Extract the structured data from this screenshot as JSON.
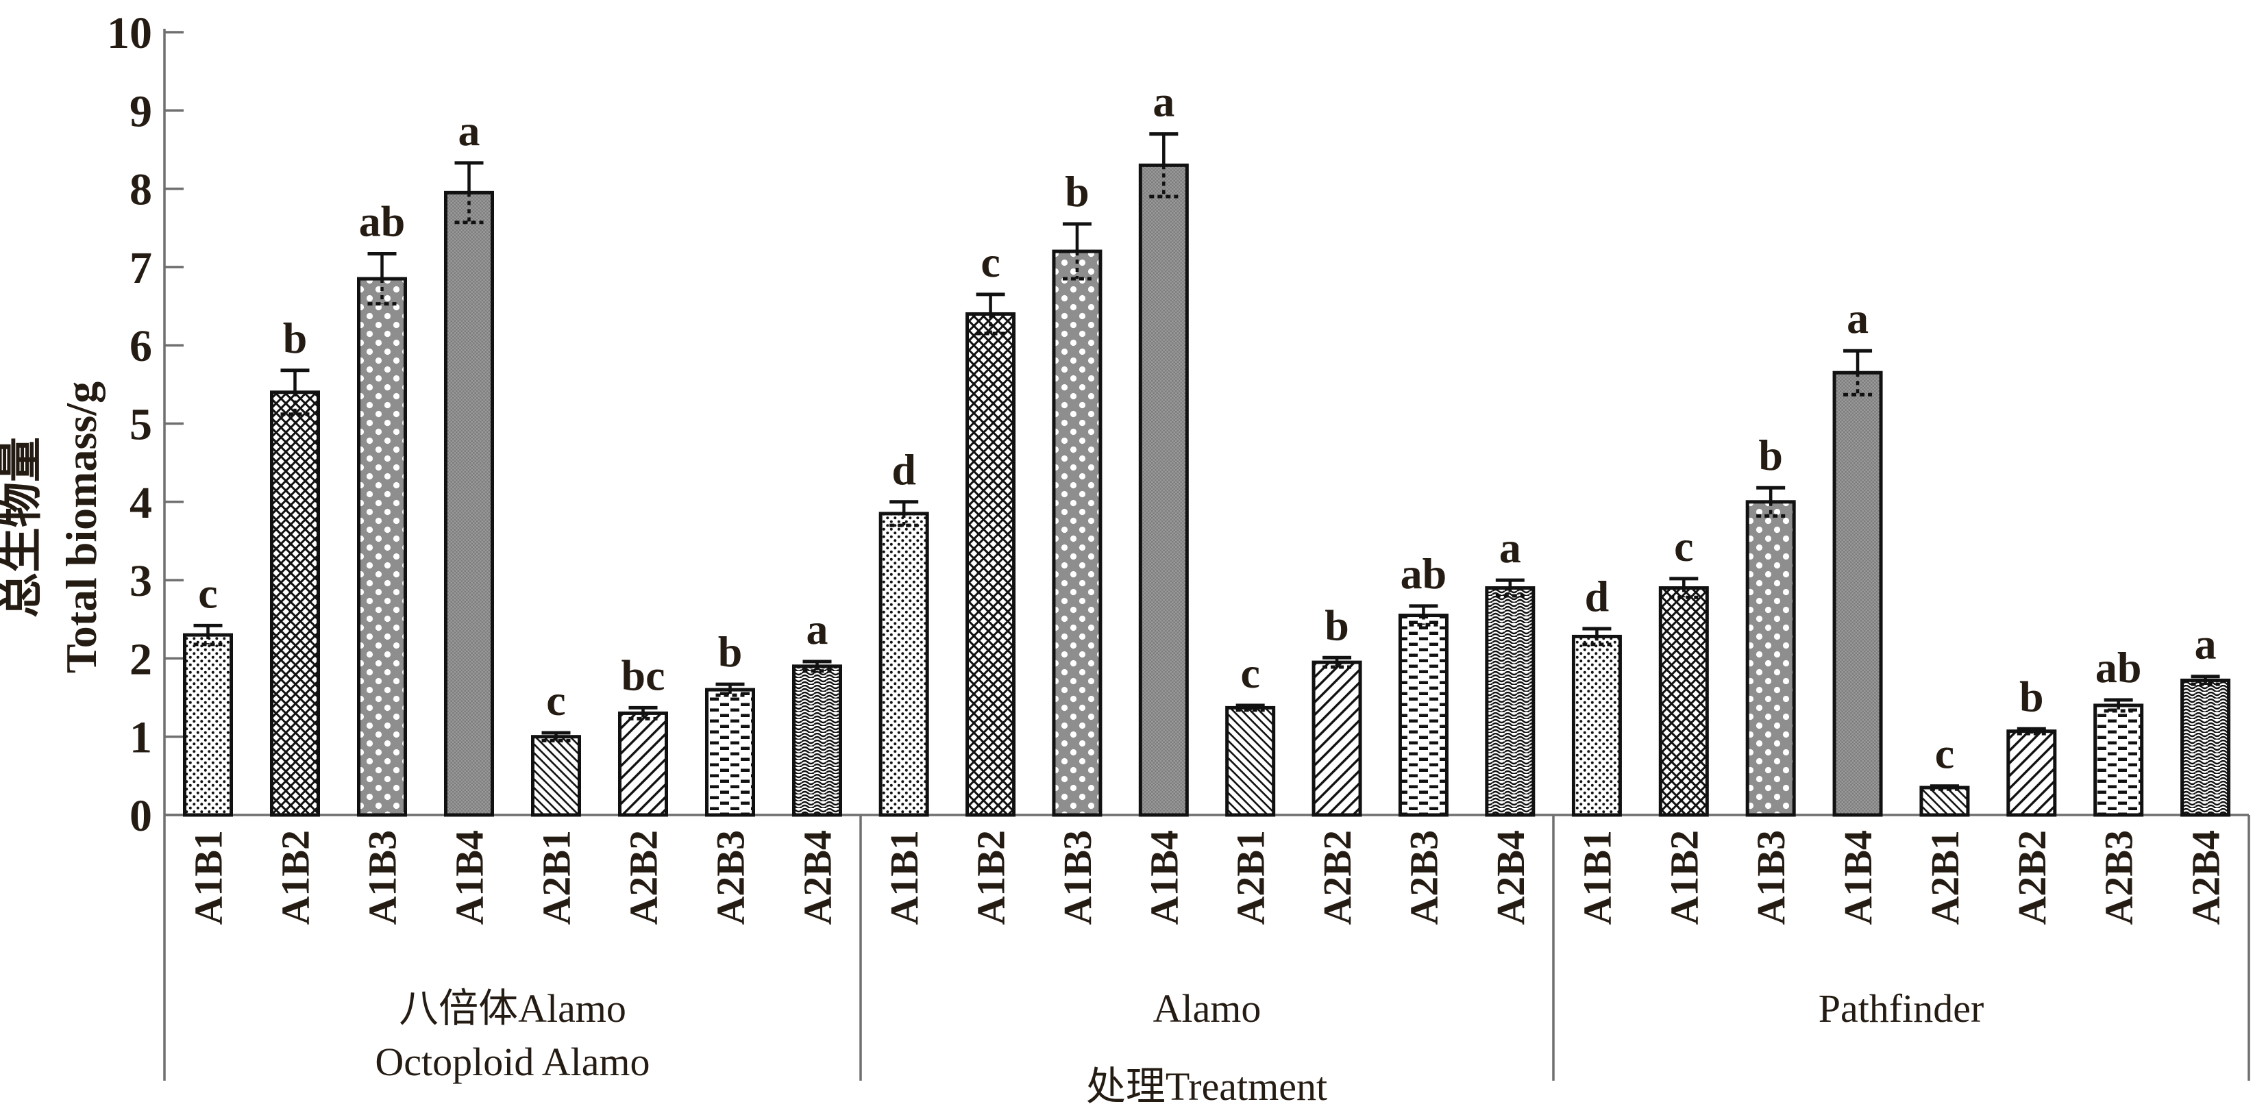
{
  "y_axis": {
    "label_cn": "总生物量",
    "label_en": "Total biomass/g",
    "tick_labels": [
      "0",
      "1",
      "2",
      "3",
      "4",
      "5",
      "6",
      "7",
      "8",
      "9",
      "10"
    ]
  },
  "x_axis": {
    "title": "处理Treatment"
  },
  "chart_data": {
    "type": "bar",
    "title": "",
    "xlabel": "处理Treatment",
    "ylabel": "总生物量 Total biomass/g",
    "ylim": [
      0,
      10
    ],
    "ytick_step": 1,
    "grid": false,
    "legend": "none",
    "bar_labels": [
      "A1B1",
      "A1B2",
      "A1B3",
      "A1B4",
      "A2B1",
      "A2B2",
      "A2B3",
      "A2B4"
    ],
    "bar_patterns": [
      "sparse-black-dots",
      "diagonal-crosshatch-mesh",
      "gray-white-polka-dots",
      "fine-gray-checker",
      "backslash-hatch",
      "forwardslash-hatch",
      "dash-rows",
      "wavy-lines"
    ],
    "groups": [
      {
        "name_lines": [
          "八倍体Alamo",
          "Octoploid Alamo"
        ],
        "values": [
          2.3,
          5.4,
          6.85,
          7.95,
          1.0,
          1.3,
          1.6,
          1.9
        ],
        "errors": [
          0.12,
          0.28,
          0.32,
          0.38,
          0.05,
          0.07,
          0.07,
          0.06
        ],
        "letters": [
          "c",
          "b",
          "ab",
          "a",
          "c",
          "bc",
          "b",
          "a"
        ]
      },
      {
        "name_lines": [
          "Alamo"
        ],
        "values": [
          3.85,
          6.4,
          7.2,
          8.3,
          1.37,
          1.95,
          2.55,
          2.9
        ],
        "errors": [
          0.15,
          0.25,
          0.35,
          0.4,
          0.03,
          0.06,
          0.12,
          0.1
        ],
        "letters": [
          "d",
          "c",
          "b",
          "a",
          "c",
          "b",
          "ab",
          "a"
        ]
      },
      {
        "name_lines": [
          "Pathfinder"
        ],
        "values": [
          2.28,
          2.9,
          4.0,
          5.65,
          0.35,
          1.07,
          1.4,
          1.72
        ],
        "errors": [
          0.1,
          0.12,
          0.18,
          0.28,
          0.02,
          0.03,
          0.07,
          0.05
        ],
        "letters": [
          "d",
          "c",
          "b",
          "a",
          "c",
          "b",
          "ab",
          "a"
        ]
      }
    ],
    "colors": {
      "bar_stroke": "#111111",
      "gray_fill": "#8e8e8e",
      "axis": "#6f6f6f",
      "text": "#241b13"
    }
  }
}
